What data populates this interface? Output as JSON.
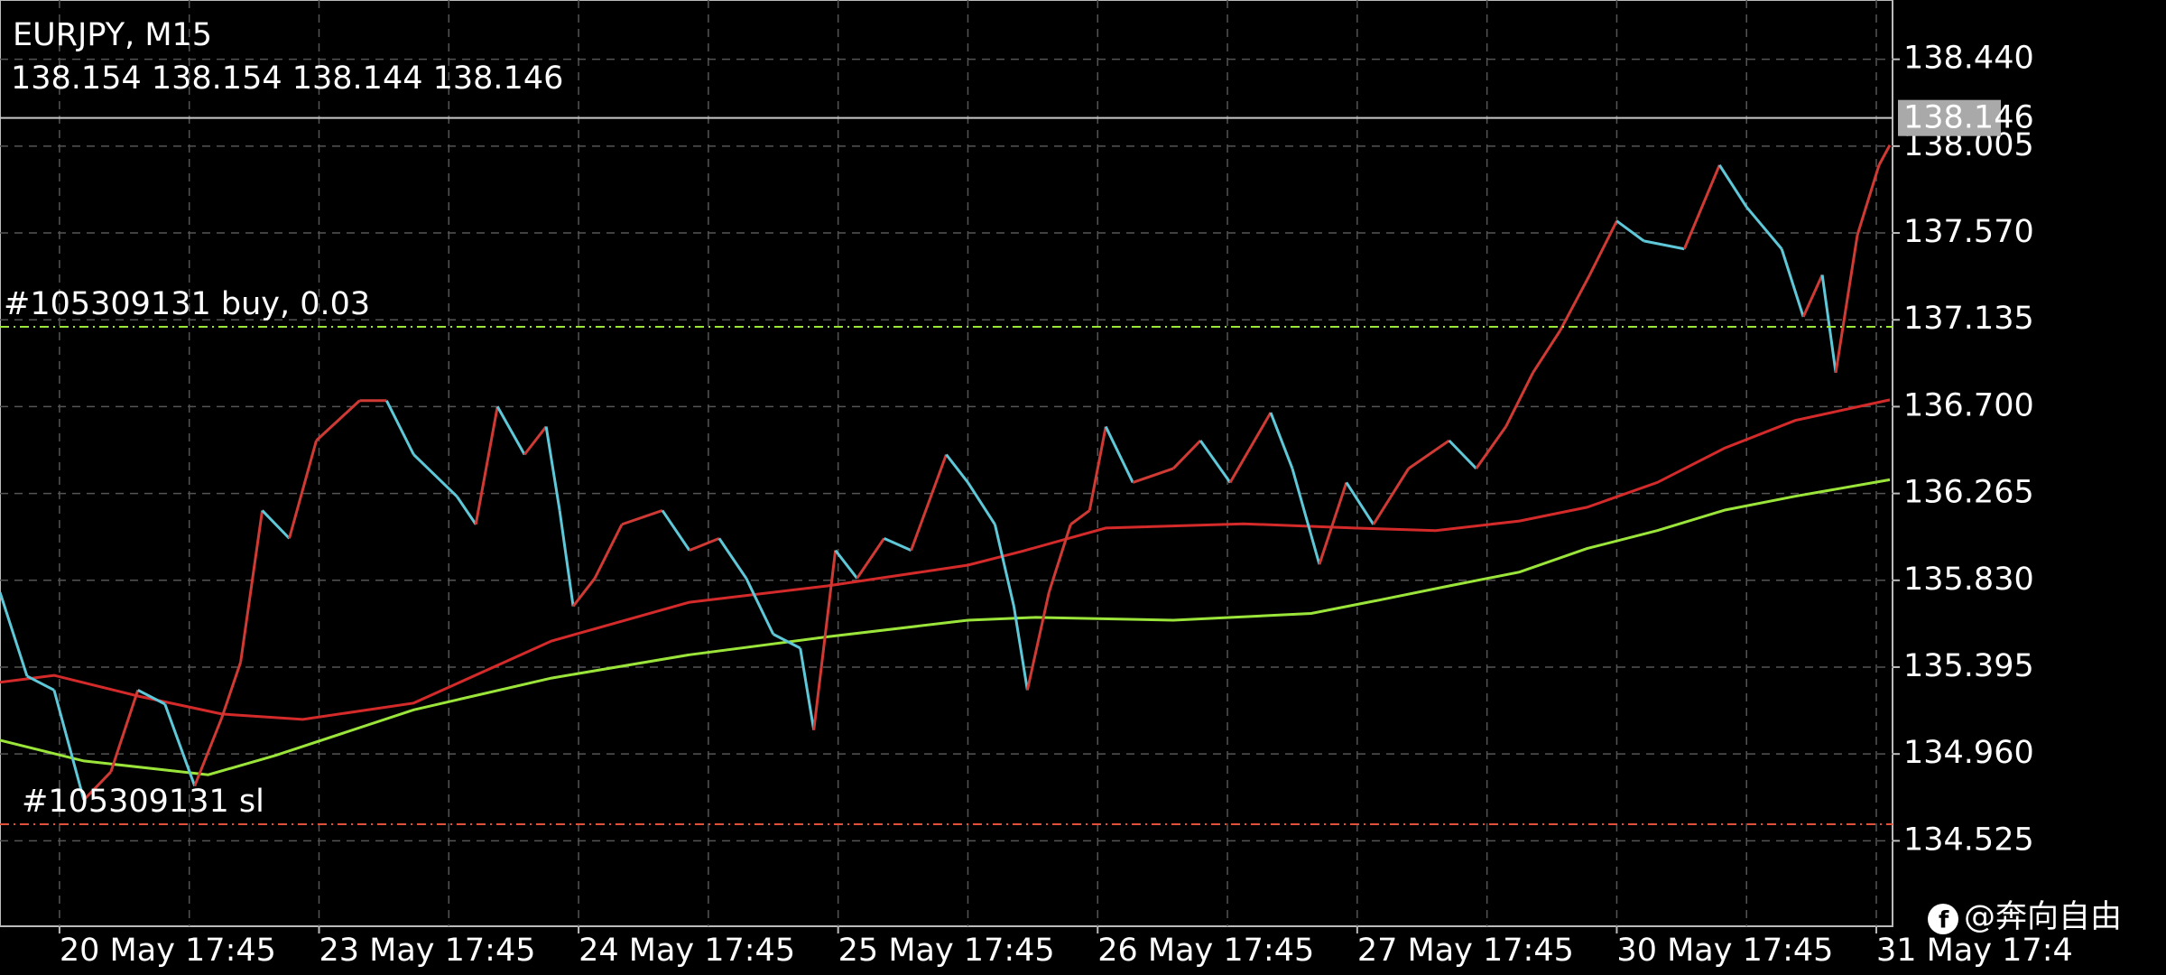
{
  "chart_data": {
    "type": "price",
    "title": "EURJPY, M15",
    "ohlc": [
      138.154,
      138.154,
      138.144,
      138.146
    ],
    "xlim": [
      0,
      700
    ],
    "ylim": [
      134.097,
      138.737
    ],
    "xticks": [
      {
        "value": 22,
        "label": "20 May 17:45"
      },
      {
        "value": 118,
        "label": "23 May 17:45"
      },
      {
        "value": 214,
        "label": "24 May 17:45"
      },
      {
        "value": 310,
        "label": "25 May 17:45"
      },
      {
        "value": 406,
        "label": "26 May 17:45"
      },
      {
        "value": 502,
        "label": "27 May 17:45"
      },
      {
        "value": 598,
        "label": "30 May 17:45"
      },
      {
        "value": 694,
        "label": "31 May 17:4"
      }
    ],
    "yticks": [
      {
        "value": 138.44,
        "label": "138.440"
      },
      138.005,
      {
        "value": 137.57,
        "label": "137.570"
      },
      137.135,
      {
        "value": 136.7,
        "label": "136.700"
      },
      136.265,
      {
        "value": 135.83,
        "label": "135.830"
      },
      135.395,
      {
        "value": 134.96,
        "label": "134.960"
      },
      134.525
    ],
    "grid": true,
    "up_color": "#d03a34",
    "down_color": "#5fc8d8",
    "price": {
      "x": [
        0,
        10,
        20,
        31,
        41,
        51,
        61,
        72,
        82,
        89,
        97,
        107,
        117,
        133,
        143,
        153,
        169,
        176,
        184,
        194,
        202,
        207,
        212,
        220,
        230,
        245,
        255,
        266,
        276,
        286,
        296,
        301,
        309,
        317,
        327,
        337,
        350,
        358,
        368,
        375,
        380,
        388,
        396,
        403,
        409,
        419,
        434,
        444,
        455,
        470,
        478,
        488,
        498,
        508,
        521,
        536,
        546,
        557,
        567,
        577,
        588,
        598,
        608,
        623,
        636,
        646,
        659,
        667,
        674,
        679,
        687,
        695,
        699
      ],
      "values": [
        135.77,
        135.35,
        135.28,
        134.73,
        134.87,
        135.28,
        135.21,
        134.8,
        135.14,
        135.42,
        136.18,
        136.04,
        136.53,
        136.73,
        136.73,
        136.46,
        136.25,
        136.11,
        136.7,
        136.46,
        136.6,
        136.18,
        135.7,
        135.84,
        136.11,
        136.18,
        135.98,
        136.04,
        135.84,
        135.56,
        135.49,
        135.08,
        135.98,
        135.84,
        136.04,
        135.98,
        136.46,
        136.32,
        136.11,
        135.7,
        135.28,
        135.77,
        136.11,
        136.18,
        136.6,
        136.32,
        136.39,
        136.53,
        136.32,
        136.67,
        136.39,
        135.91,
        136.32,
        136.11,
        136.39,
        136.53,
        136.39,
        136.6,
        136.87,
        137.08,
        137.36,
        137.63,
        137.53,
        137.49,
        137.91,
        137.7,
        137.49,
        137.15,
        137.36,
        136.87,
        137.56,
        137.91,
        138.01
      ]
    },
    "series": [
      {
        "color": "#d42a2a",
        "x": [
          0,
          20,
          51,
          82,
          112,
          153,
          204,
          255,
          306,
          358,
          378,
          409,
          460,
          501,
          531,
          562,
          587,
          613,
          638,
          664,
          699
        ],
        "values": [
          135.319,
          135.354,
          135.25,
          135.16,
          135.133,
          135.215,
          135.526,
          135.72,
          135.802,
          135.906,
          135.975,
          136.092,
          136.113,
          136.092,
          136.079,
          136.127,
          136.196,
          136.32,
          136.493,
          136.631,
          136.734
        ]
      },
      {
        "color": "#9be53a",
        "x": [
          0,
          31,
          77,
          102,
          153,
          204,
          255,
          306,
          358,
          383,
          434,
          485,
          511,
          536,
          562,
          587,
          613,
          638,
          664,
          699
        ],
        "values": [
          135.029,
          134.925,
          134.856,
          134.953,
          135.181,
          135.34,
          135.457,
          135.547,
          135.63,
          135.644,
          135.63,
          135.664,
          135.733,
          135.802,
          135.871,
          135.989,
          136.079,
          136.182,
          136.251,
          136.334
        ]
      }
    ],
    "current_price": {
      "value": 138.146,
      "color": "#c8c8c8"
    },
    "levels": [
      {
        "label": "#105309131 buy, 0.03",
        "value": 137.1,
        "color": "#9be53a"
      },
      {
        "label": "#105309131 sl",
        "value": 134.608,
        "color": "#e0503a"
      }
    ],
    "watermark": "@奔向自由"
  }
}
